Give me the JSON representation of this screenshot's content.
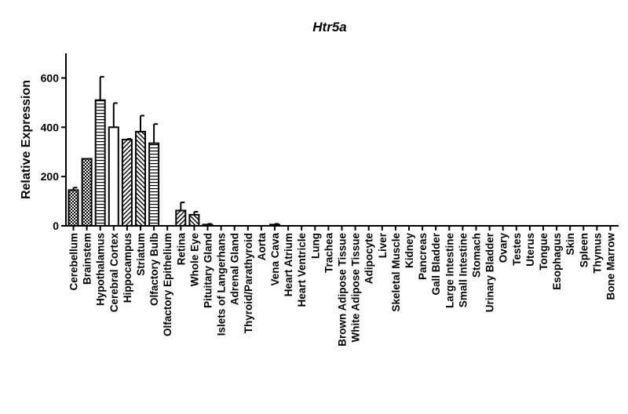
{
  "chart_data": {
    "type": "bar",
    "title": "Htr5a",
    "xlabel": "",
    "ylabel": "Relative Expression",
    "ylim": [
      0,
      700
    ],
    "yticks": [
      0,
      200,
      400,
      600
    ],
    "grid": false,
    "legend": "none",
    "categories": [
      "Cerebellum",
      "Brainstem",
      "Hypothalamus",
      "Cerebral Cortex",
      "Hippocampus",
      "Striatum",
      "Olfactory Bulb",
      "Olfactory Epithelium",
      "Retina",
      "Whole Eye",
      "Pituitary Gland",
      "Islets of Langerhans",
      "Adrenal Gland",
      "Thyroid/Parathyroid",
      "Aorta",
      "Vena Cava",
      "Heart Atrium",
      "Heart Ventricle",
      "Lung",
      "Trachea",
      "Brown Adipose Tissue",
      "White Adipose Tissue",
      "Adipocyte",
      "Liver",
      "Skeletal Muscle",
      "Kidney",
      "Pancreas",
      "Gall Bladder",
      "Large Intestine",
      "Small Intestine",
      "Stomach",
      "Urinary Bladder",
      "Ovary",
      "Testes",
      "Uterus",
      "Tongue",
      "Esophagus",
      "Skin",
      "Spleen",
      "Thymus",
      "Bone Marrow"
    ],
    "values": [
      145,
      272,
      510,
      400,
      350,
      382,
      335,
      0,
      62,
      45,
      5,
      0,
      0,
      0,
      0,
      5,
      0,
      0,
      0,
      0,
      0,
      0,
      0,
      0,
      0,
      0,
      0,
      0,
      0,
      0,
      0,
      0,
      0,
      0,
      0,
      0,
      0,
      0,
      0,
      0,
      0
    ],
    "errors": [
      10,
      0,
      95,
      98,
      3,
      65,
      78,
      0,
      33,
      12,
      3,
      0,
      0,
      0,
      0,
      3,
      0,
      0,
      0,
      0,
      0,
      0,
      0,
      0,
      0,
      0,
      0,
      0,
      0,
      0,
      0,
      0,
      0,
      0,
      0,
      0,
      0,
      0,
      0,
      0,
      0
    ],
    "patterns": [
      "checker",
      "checker",
      "hlines",
      "empty",
      "diag-left",
      "diag-right",
      "hlines",
      "empty",
      "diag-left",
      "diag-right",
      "empty",
      "empty",
      "empty",
      "empty",
      "empty",
      "empty",
      "empty",
      "empty",
      "empty",
      "empty",
      "empty",
      "empty",
      "empty",
      "empty",
      "empty",
      "empty",
      "empty",
      "empty",
      "empty",
      "empty",
      "empty",
      "empty",
      "empty",
      "empty",
      "empty",
      "empty",
      "empty",
      "empty",
      "empty",
      "empty",
      "empty"
    ]
  }
}
